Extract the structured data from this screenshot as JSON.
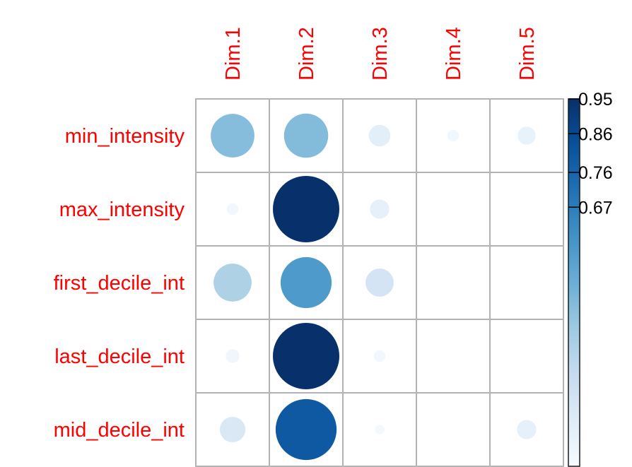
{
  "chart_data": {
    "type": "heatmap",
    "title": "",
    "rows": [
      "min_intensity",
      "max_intensity",
      "first_decile_int",
      "last_decile_int",
      "mid_decile_int"
    ],
    "cols": [
      "Dim.1",
      "Dim.2",
      "Dim.3",
      "Dim.4",
      "Dim.5"
    ],
    "values": [
      [
        0.41,
        0.42,
        0.1,
        0.03,
        0.07
      ],
      [
        0.03,
        0.95,
        0.08,
        0.0,
        0.0
      ],
      [
        0.31,
        0.56,
        0.17,
        0.0,
        0.0
      ],
      [
        0.04,
        0.96,
        0.03,
        0.0,
        0.0
      ],
      [
        0.14,
        0.8,
        0.02,
        0.0,
        0.08
      ]
    ],
    "legend": {
      "ticks": [
        "0.95",
        "0.86",
        "0.76",
        "0.67"
      ],
      "tick_values": [
        0.95,
        0.86,
        0.76,
        0.67
      ],
      "range": [
        0,
        0.95
      ],
      "placement": "right"
    },
    "grid": true,
    "label_color": "#ff0000",
    "palette": [
      "#f7fbff",
      "#deebf7",
      "#c6dbef",
      "#9ecae1",
      "#6baed6",
      "#4292c6",
      "#2171b5",
      "#08519c",
      "#08306b"
    ]
  }
}
